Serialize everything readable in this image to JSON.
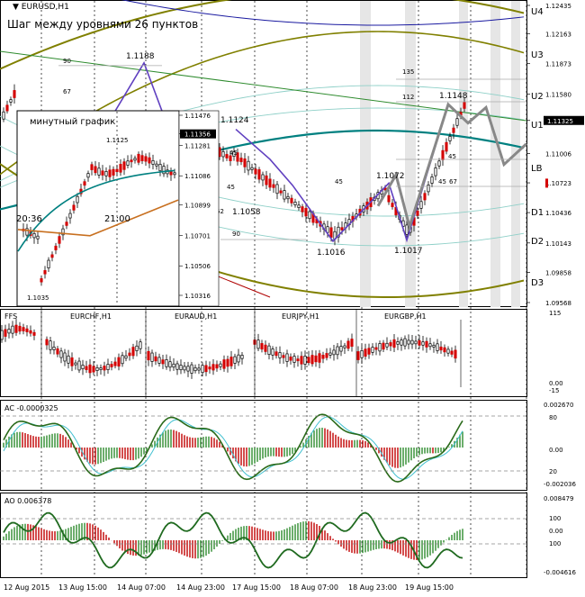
{
  "window": {
    "symbol": "EURUSD,H1",
    "caption": "Шаг между уровнями 26 пунктов"
  },
  "inset": {
    "title": "минутный график",
    "time_labels": [
      "20:36",
      "21:00"
    ],
    "low_label": "1.1035",
    "high_label": "1.1125"
  },
  "colors": {
    "bg": "#ffffff",
    "grid": "#b0b0b0",
    "bull": "#000000",
    "bear": "#d40000",
    "olive": "#808000",
    "teal": "#008080",
    "navy": "#1a1aa0",
    "wave": "#6040c0",
    "trend": "#2e8b2e",
    "projection": "#888888"
  },
  "chart_data": [
    {
      "type": "line",
      "title": "EURUSD,H1",
      "price_axis": [
        "1.12435",
        "1.12163",
        "1.11873",
        "1.11580",
        "1.11325",
        "1.11006",
        "1.10723",
        "1.10436",
        "1.10143",
        "1.09858",
        "1.09568"
      ],
      "current_price": "1.11325",
      "level_labels": [
        "U4",
        "U3",
        "U2",
        "U1",
        "LB",
        "D1",
        "D2",
        "D3"
      ],
      "inset_price_axis": [
        "1.11476",
        "1.11356",
        "1.11281",
        "1.11086",
        "1.10899",
        "1.10701",
        "1.10506",
        "1.10316"
      ],
      "inset_current_price": "1.11356",
      "wave_points": [
        {
          "label": "1.1188",
          "value": 1.1188
        },
        {
          "label": "1.1124",
          "value": 1.1124
        },
        {
          "label": "1.1058",
          "value": 1.1058
        },
        {
          "label": "1.1016",
          "value": 1.1016
        },
        {
          "label": "1.1072",
          "value": 1.1072
        },
        {
          "label": "1.1017",
          "value": 1.1017
        },
        {
          "label": "1.1148",
          "value": 1.1148
        }
      ],
      "annotations": [
        "90",
        "67",
        "45",
        "62",
        "45",
        "45",
        "90",
        "135",
        "112",
        "45",
        "45",
        "67"
      ]
    },
    {
      "type": "bar",
      "title": "FFS",
      "panels": [
        "EURCHF,H1",
        "EURAUD,H1",
        "EURJPY,H1",
        "EURGBP,H1"
      ],
      "y_axis": [
        "115",
        "0.00",
        "-15"
      ]
    },
    {
      "type": "bar",
      "title": "AC -0.0000325",
      "y_axis": [
        "0.002670",
        "80",
        "0.00",
        "20",
        "-0.002036"
      ]
    },
    {
      "type": "bar",
      "title": "AO 0.006378",
      "y_axis": [
        "0.008479",
        "100",
        "0.00",
        "100",
        "-0.004616"
      ]
    }
  ],
  "time_axis": [
    "12 Aug 2015",
    "13 Aug 15:00",
    "14 Aug 07:00",
    "14 Aug 23:00",
    "17 Aug 15:00",
    "18 Aug 07:00",
    "18 Aug 23:00",
    "19 Aug 15:00"
  ]
}
